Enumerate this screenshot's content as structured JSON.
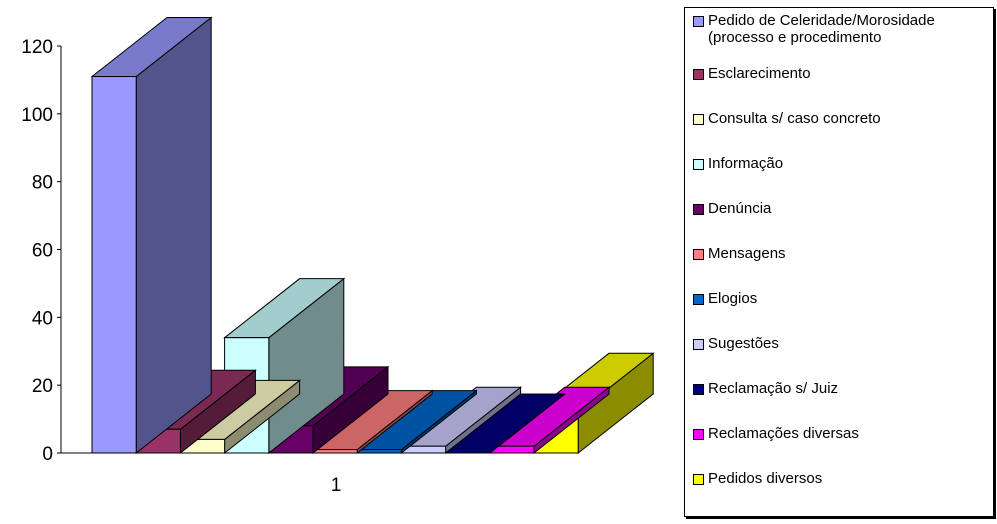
{
  "chart_data": {
    "type": "bar",
    "style": "3d-clustered-column",
    "categories": [
      "1"
    ],
    "ylim": [
      0,
      120
    ],
    "yticks": [
      0,
      20,
      40,
      60,
      80,
      100,
      120
    ],
    "grid": false,
    "legend_position": "right",
    "series": [
      {
        "name": "Pedido de Celeridade/Morosidade\n(processo e procedimento",
        "values": [
          111
        ],
        "color": "#9999ff"
      },
      {
        "name": "Esclarecimento",
        "values": [
          7
        ],
        "color": "#993366"
      },
      {
        "name": "Consulta s/ caso concreto",
        "values": [
          4
        ],
        "color": "#ffffcc"
      },
      {
        "name": "Informação",
        "values": [
          34
        ],
        "color": "#ccffff"
      },
      {
        "name": "Denúncia",
        "values": [
          8
        ],
        "color": "#660066"
      },
      {
        "name": "Mensagens",
        "values": [
          1
        ],
        "color": "#ff8080"
      },
      {
        "name": "Elogios",
        "values": [
          1
        ],
        "color": "#0066cc"
      },
      {
        "name": "Sugestões",
        "values": [
          2
        ],
        "color": "#ccccff"
      },
      {
        "name": "Reclamação s/ Juiz",
        "values": [
          0
        ],
        "color": "#000080"
      },
      {
        "name": "Reclamações diversas",
        "values": [
          2
        ],
        "color": "#ff00ff"
      },
      {
        "name": "Pedidos diversos",
        "values": [
          12
        ],
        "color": "#ffff00"
      }
    ]
  }
}
